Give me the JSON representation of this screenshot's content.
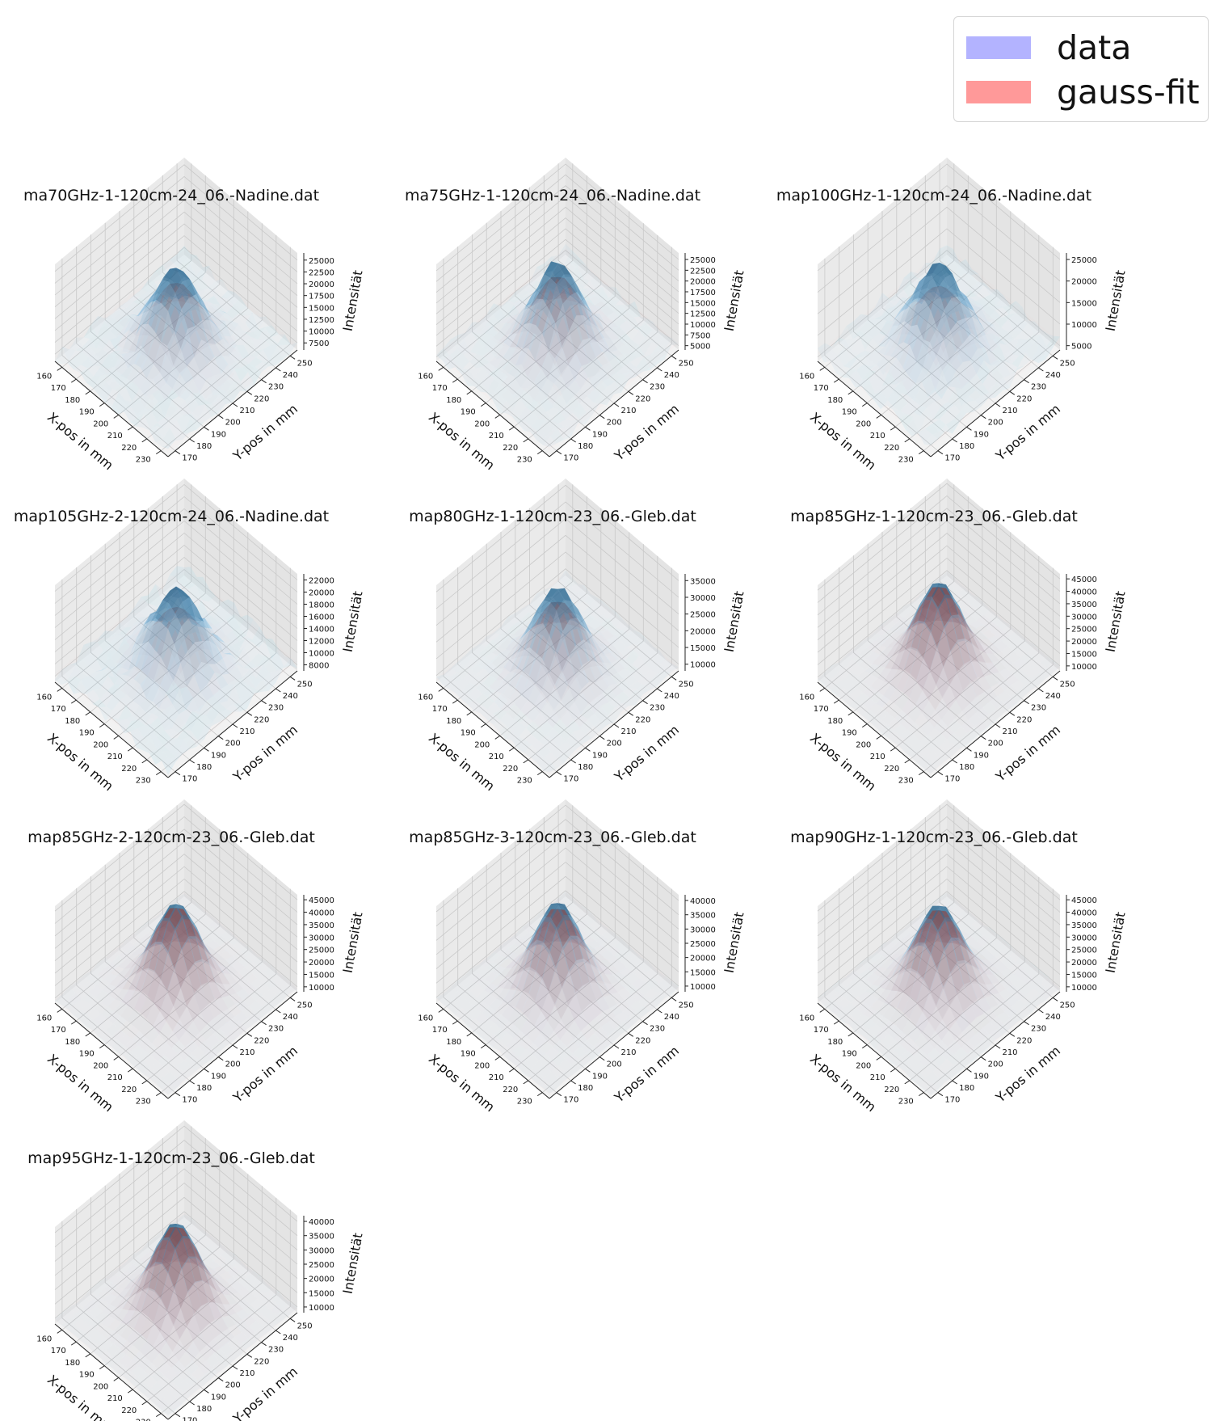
{
  "legend": {
    "items": [
      {
        "label": "data",
        "color": "#b3b3ff"
      },
      {
        "label": "gauss-fit",
        "color": "#ff9999"
      }
    ]
  },
  "chart_data": {
    "type": "surface3d",
    "xlabel": "X-pos in mm",
    "ylabel": "Y-pos in mm",
    "zlabel": "Intensität",
    "x_ticks": [
      160,
      170,
      180,
      190,
      200,
      210,
      220,
      230
    ],
    "y_ticks": [
      170,
      180,
      190,
      200,
      210,
      220,
      230,
      240,
      250
    ],
    "xlim": [
      155,
      235
    ],
    "ylim": [
      165,
      255
    ],
    "series_colors": {
      "data": "#3a78b5",
      "gauss-fit": "#d6504b"
    },
    "panels": [
      {
        "title": "ma70GHz-1-120cm-24_06.-Nadine.dat",
        "z_ticks": [
          7500,
          10000,
          12500,
          15000,
          17500,
          20000,
          22500,
          25000
        ],
        "zlim": [
          6000,
          26500
        ],
        "peak": 24500,
        "fit_peak": 21000,
        "baseline": 7000,
        "noise": 0.45,
        "fit_strength": 0.35
      },
      {
        "title": "ma75GHz-1-120cm-24_06.-Nadine.dat",
        "z_ticks": [
          5000,
          7500,
          10000,
          12500,
          15000,
          17500,
          20000,
          22500,
          25000
        ],
        "zlim": [
          4000,
          26500
        ],
        "peak": 25500,
        "fit_peak": 22000,
        "baseline": 5500,
        "noise": 0.35,
        "fit_strength": 0.45
      },
      {
        "title": "map100GHz-1-120cm-24_06.-Nadine.dat",
        "z_ticks": [
          5000,
          10000,
          15000,
          20000,
          25000
        ],
        "zlim": [
          4000,
          26500
        ],
        "peak": 25000,
        "fit_peak": 19500,
        "baseline": 6000,
        "noise": 0.45,
        "fit_strength": 0.3
      },
      {
        "title": "map105GHz-2-120cm-24_06.-Nadine.dat",
        "z_ticks": [
          8000,
          10000,
          12000,
          14000,
          16000,
          18000,
          20000,
          22000
        ],
        "zlim": [
          7000,
          23000
        ],
        "peak": 21500,
        "fit_peak": 18000,
        "baseline": 8500,
        "noise": 0.5,
        "fit_strength": 0.3
      },
      {
        "title": "map80GHz-1-120cm-23_06.-Gleb.dat",
        "z_ticks": [
          10000,
          15000,
          20000,
          25000,
          30000,
          35000
        ],
        "zlim": [
          8000,
          37000
        ],
        "peak": 34500,
        "fit_peak": 30000,
        "baseline": 9000,
        "noise": 0.2,
        "fit_strength": 0.45
      },
      {
        "title": "map85GHz-1-120cm-23_06.-Gleb.dat",
        "z_ticks": [
          10000,
          15000,
          20000,
          25000,
          30000,
          35000,
          40000,
          45000
        ],
        "zlim": [
          8000,
          47000
        ],
        "peak": 45500,
        "fit_peak": 44000,
        "baseline": 9500,
        "noise": 0.08,
        "fit_strength": 0.8
      },
      {
        "title": "map85GHz-2-120cm-23_06.-Gleb.dat",
        "z_ticks": [
          10000,
          15000,
          20000,
          25000,
          30000,
          35000,
          40000,
          45000
        ],
        "zlim": [
          8000,
          47000
        ],
        "peak": 45500,
        "fit_peak": 44000,
        "baseline": 9500,
        "noise": 0.08,
        "fit_strength": 0.8
      },
      {
        "title": "map85GHz-3-120cm-23_06.-Gleb.dat",
        "z_ticks": [
          10000,
          15000,
          20000,
          25000,
          30000,
          35000,
          40000
        ],
        "zlim": [
          8000,
          42000
        ],
        "peak": 41000,
        "fit_peak": 39000,
        "baseline": 9500,
        "noise": 0.1,
        "fit_strength": 0.7
      },
      {
        "title": "map90GHz-1-120cm-23_06.-Gleb.dat",
        "z_ticks": [
          10000,
          15000,
          20000,
          25000,
          30000,
          35000,
          40000,
          45000
        ],
        "zlim": [
          8000,
          47000
        ],
        "peak": 45000,
        "fit_peak": 43000,
        "baseline": 9500,
        "noise": 0.1,
        "fit_strength": 0.75
      },
      {
        "title": "map95GHz-1-120cm-23_06.-Gleb.dat",
        "z_ticks": [
          10000,
          15000,
          20000,
          25000,
          30000,
          35000,
          40000
        ],
        "zlim": [
          8000,
          42000
        ],
        "peak": 41000,
        "fit_peak": 40000,
        "baseline": 9500,
        "noise": 0.08,
        "fit_strength": 0.8
      }
    ]
  }
}
